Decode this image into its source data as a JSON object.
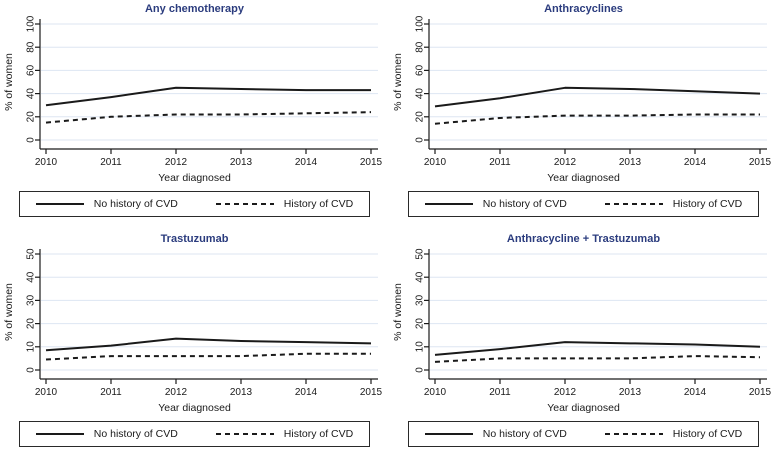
{
  "figure": {
    "background": "#ffffff",
    "title_color": "#2b3c7e",
    "line_color": "#1a1a1a",
    "grid_color": "#dde6f2",
    "xlabel": "Year diagnosed",
    "ylabel": "% of women",
    "legend": [
      {
        "label": "No history of CVD",
        "style": "solid"
      },
      {
        "label": "History of CVD",
        "style": "dashed"
      }
    ]
  },
  "chart_data": [
    {
      "type": "line",
      "title": "Any chemotherapy",
      "x": [
        2010,
        2011,
        2012,
        2013,
        2014,
        2015
      ],
      "xlabel": "Year diagnosed",
      "ylabel": "% of women",
      "ylim": [
        0,
        100
      ],
      "yticks": [
        0,
        20,
        40,
        60,
        80,
        100
      ],
      "grid": true,
      "legend_position": "bottom",
      "series": [
        {
          "name": "No history of CVD",
          "style": "solid",
          "values": [
            30,
            37,
            45,
            44,
            43,
            43
          ]
        },
        {
          "name": "History of CVD",
          "style": "dashed",
          "values": [
            15,
            20,
            22,
            22,
            23,
            24
          ]
        }
      ]
    },
    {
      "type": "line",
      "title": "Anthracyclines",
      "x": [
        2010,
        2011,
        2012,
        2013,
        2014,
        2015
      ],
      "xlabel": "Year diagnosed",
      "ylabel": "% of women",
      "ylim": [
        0,
        100
      ],
      "yticks": [
        0,
        20,
        40,
        60,
        80,
        100
      ],
      "grid": true,
      "legend_position": "bottom",
      "series": [
        {
          "name": "No history of CVD",
          "style": "solid",
          "values": [
            29,
            36,
            45,
            44,
            42,
            40
          ]
        },
        {
          "name": "History of CVD",
          "style": "dashed",
          "values": [
            14,
            19,
            21,
            21,
            22,
            22
          ]
        }
      ]
    },
    {
      "type": "line",
      "title": "Trastuzumab",
      "x": [
        2010,
        2011,
        2012,
        2013,
        2014,
        2015
      ],
      "xlabel": "Year diagnosed",
      "ylabel": "% of women",
      "ylim": [
        0,
        50
      ],
      "yticks": [
        0,
        10,
        20,
        30,
        40,
        50
      ],
      "grid": true,
      "legend_position": "bottom",
      "series": [
        {
          "name": "No history of CVD",
          "style": "solid",
          "values": [
            8.5,
            10.5,
            13.5,
            12.5,
            12,
            11.5
          ]
        },
        {
          "name": "History of CVD",
          "style": "dashed",
          "values": [
            4.5,
            6,
            6,
            6,
            7,
            7
          ]
        }
      ]
    },
    {
      "type": "line",
      "title": "Anthracycline + Trastuzumab",
      "x": [
        2010,
        2011,
        2012,
        2013,
        2014,
        2015
      ],
      "xlabel": "Year diagnosed",
      "ylabel": "% of women",
      "ylim": [
        0,
        50
      ],
      "yticks": [
        0,
        10,
        20,
        30,
        40,
        50
      ],
      "grid": true,
      "legend_position": "bottom",
      "series": [
        {
          "name": "No history of CVD",
          "style": "solid",
          "values": [
            6.5,
            9,
            12,
            11.5,
            11,
            10
          ]
        },
        {
          "name": "History of CVD",
          "style": "dashed",
          "values": [
            3.5,
            5,
            5,
            5,
            6,
            5.5
          ]
        }
      ]
    }
  ]
}
